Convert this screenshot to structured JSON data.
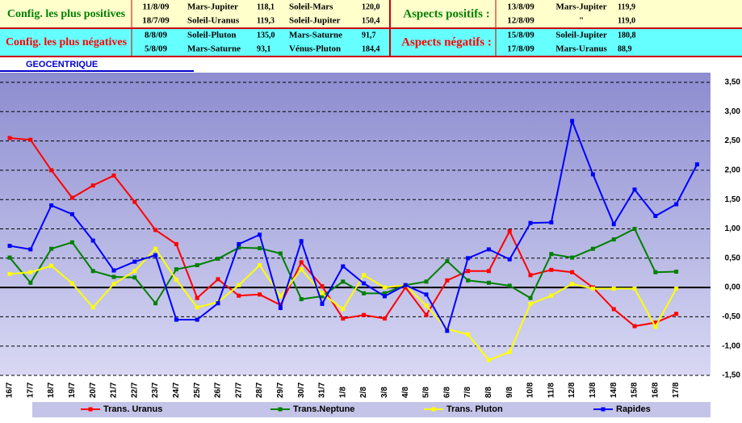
{
  "panel": {
    "positive": {
      "label": "Config. les plus positives",
      "rows": [
        [
          "11/8/09",
          "Mars-Jupiter",
          "118,1",
          "Soleil-Mars",
          "120,0"
        ],
        [
          "18/7/09",
          "Soleil-Uranus",
          "119,3",
          "Soleil-Jupiter",
          "150,4"
        ]
      ]
    },
    "negative": {
      "label": "Config. les plus négatives",
      "rows": [
        [
          "8/8/09",
          "Soleil-Pluton",
          "135,0",
          "Mars-Saturne",
          "91,7"
        ],
        [
          "5/8/09",
          "Mars-Saturne",
          "93,1",
          "Vénus-Pluton",
          "184,4"
        ]
      ]
    },
    "aspects_positive": {
      "label": "Aspects positifs :",
      "rows": [
        [
          "13/8/09",
          "Mars-Jupiter",
          "119,9"
        ],
        [
          "12/8/09",
          "\"",
          "119,0"
        ]
      ]
    },
    "aspects_negative": {
      "label": "Aspects négatifs :",
      "rows": [
        [
          "15/8/09",
          "Soleil-Jupiter",
          "180,8"
        ],
        [
          "17/8/09",
          "Mars-Uranus",
          "88,9"
        ]
      ]
    }
  },
  "chart_data": {
    "type": "line",
    "title": "GEOCENTRIQUE",
    "categories": [
      "16/7",
      "17/7",
      "18/7",
      "19/7",
      "20/7",
      "21/7",
      "22/7",
      "23/7",
      "24/7",
      "25/7",
      "26/7",
      "27/7",
      "28/7",
      "29/7",
      "30/7",
      "31/7",
      "1/8",
      "2/8",
      "3/8",
      "4/8",
      "5/8",
      "6/8",
      "7/8",
      "8/8",
      "9/8",
      "10/8",
      "11/8",
      "12/8",
      "13/8",
      "14/8",
      "15/8",
      "16/8",
      "17/8",
      null
    ],
    "series": [
      {
        "name": "Trans. Uranus",
        "color": "#ff0000",
        "values": [
          2.55,
          2.52,
          2.0,
          1.53,
          1.74,
          1.91,
          1.46,
          0.98,
          0.74,
          -0.18,
          0.14,
          -0.14,
          -0.12,
          -0.3,
          0.43,
          0.02,
          -0.53,
          -0.47,
          -0.53,
          0.0,
          -0.47,
          0.12,
          0.28,
          0.28,
          0.96,
          0.21,
          0.3,
          0.26,
          0.0,
          -0.37,
          -0.66,
          -0.6,
          -0.45,
          null
        ]
      },
      {
        "name": "Trans.Neptune",
        "color": "#008000",
        "values": [
          0.51,
          0.08,
          0.66,
          0.77,
          0.28,
          0.18,
          0.17,
          -0.27,
          0.31,
          0.38,
          0.49,
          0.68,
          0.67,
          0.58,
          -0.2,
          -0.15,
          0.1,
          -0.1,
          -0.1,
          0.04,
          0.1,
          0.45,
          0.12,
          0.08,
          0.03,
          -0.18,
          0.57,
          0.51,
          0.66,
          0.82,
          1.0,
          0.26,
          0.27,
          null
        ]
      },
      {
        "name": "Trans. Pluton",
        "color": "#ffff00",
        "values": [
          0.23,
          0.26,
          0.37,
          0.07,
          -0.34,
          0.06,
          0.28,
          0.66,
          0.13,
          -0.34,
          -0.25,
          0.04,
          0.38,
          -0.15,
          0.31,
          -0.1,
          -0.37,
          0.21,
          0.0,
          0.04,
          -0.31,
          -0.71,
          -0.8,
          -1.24,
          -1.1,
          -0.28,
          -0.14,
          0.06,
          -0.02,
          -0.02,
          -0.02,
          -0.67,
          -0.02,
          null
        ]
      },
      {
        "name": "Rapides",
        "color": "#0000ff",
        "values": [
          0.71,
          0.65,
          1.4,
          1.25,
          0.8,
          0.29,
          0.44,
          0.55,
          -0.55,
          -0.55,
          -0.27,
          0.74,
          0.9,
          -0.35,
          0.79,
          -0.28,
          0.36,
          0.07,
          -0.15,
          0.04,
          -0.12,
          -0.74,
          0.5,
          0.65,
          0.48,
          1.1,
          1.11,
          2.84,
          1.93,
          1.08,
          1.67,
          1.22,
          1.42,
          2.1
        ]
      }
    ],
    "ylim": [
      -1.5,
      3.5
    ],
    "yticks": [
      {
        "value": -1.5,
        "label": "-1,50"
      },
      {
        "value": -1,
        "label": "-1,00"
      },
      {
        "value": -0.5,
        "label": "-0,50"
      },
      {
        "value": 0,
        "label": "0,00"
      },
      {
        "value": 0.5,
        "label": "0,50"
      },
      {
        "value": 1,
        "label": "1,00"
      },
      {
        "value": 1.5,
        "label": "1,50"
      },
      {
        "value": 2,
        "label": "2,00"
      },
      {
        "value": 2.5,
        "label": "2,50"
      },
      {
        "value": 3,
        "label": "3,00"
      },
      {
        "value": 3.5,
        "label": "3,50"
      }
    ],
    "grid": true,
    "legend": "bottom"
  }
}
